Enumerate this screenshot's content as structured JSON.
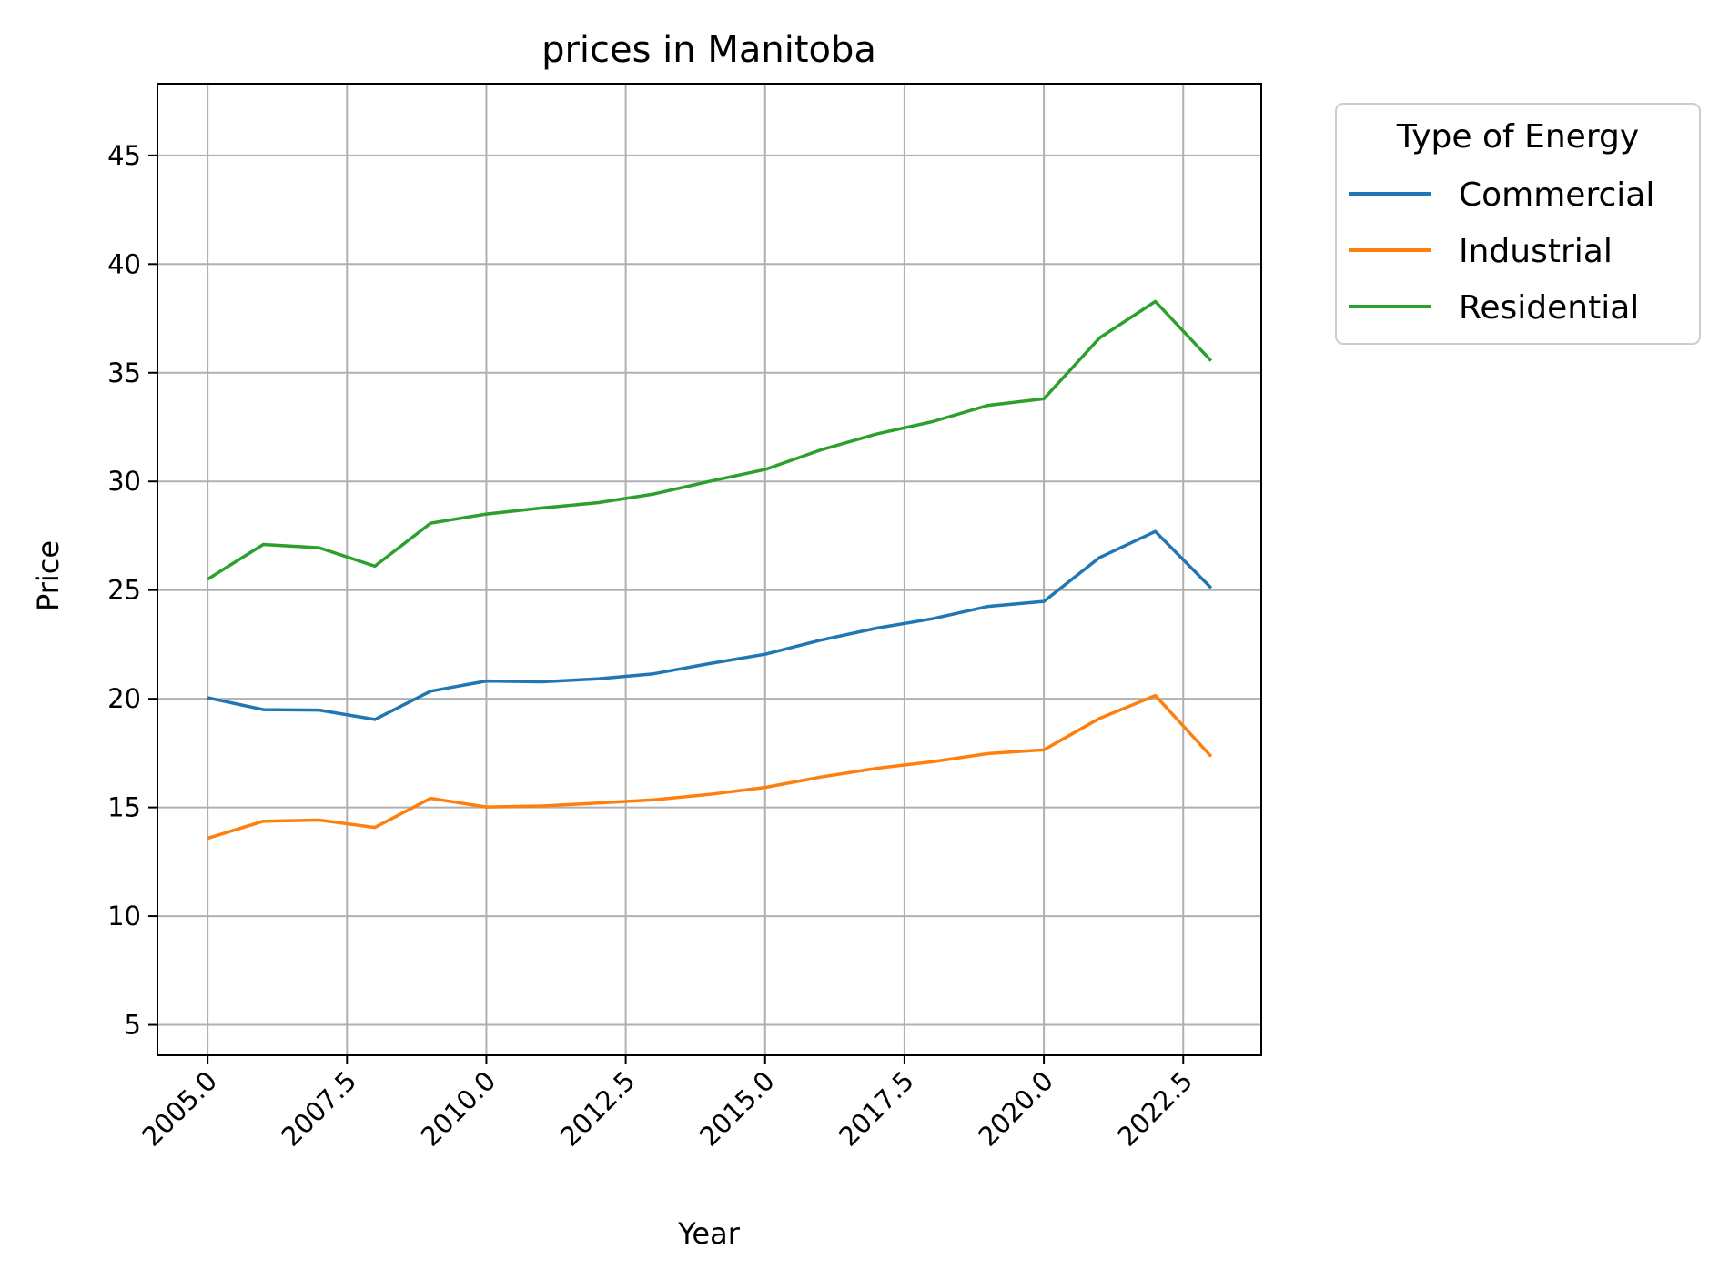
{
  "chart_data": {
    "type": "line",
    "title": "prices in Manitoba",
    "xlabel": "Year",
    "ylabel": "Price",
    "xlim": [
      2004.1,
      2023.9
    ],
    "ylim": [
      3.6,
      48.3
    ],
    "xticks": [
      2005.0,
      2007.5,
      2010.0,
      2012.5,
      2015.0,
      2017.5,
      2020.0,
      2022.5
    ],
    "xtick_labels": [
      "2005.0",
      "2007.5",
      "2010.0",
      "2012.5",
      "2015.0",
      "2017.5",
      "2020.0",
      "2022.5"
    ],
    "yticks": [
      5,
      10,
      15,
      20,
      25,
      30,
      35,
      40,
      45
    ],
    "ytick_labels": [
      "5",
      "10",
      "15",
      "20",
      "25",
      "30",
      "35",
      "40",
      "45"
    ],
    "grid": true,
    "legend": {
      "title": "Type of Energy",
      "placement": "outside upper right"
    },
    "x": [
      2005,
      2006,
      2007,
      2008,
      2009,
      2010,
      2011,
      2012,
      2013,
      2014,
      2015,
      2016,
      2017,
      2018,
      2019,
      2020,
      2021,
      2022,
      2023
    ],
    "series": [
      {
        "name": "Commercial",
        "color": "#1f77b4",
        "values": [
          20.05,
          19.5,
          19.48,
          19.05,
          20.35,
          20.82,
          20.78,
          20.92,
          21.15,
          21.62,
          22.05,
          22.7,
          23.25,
          23.68,
          24.25,
          24.48,
          26.5,
          27.7,
          25.1
        ]
      },
      {
        "name": "Industrial",
        "color": "#ff7f0e",
        "values": [
          13.58,
          14.37,
          14.42,
          14.08,
          15.42,
          15.02,
          15.07,
          15.2,
          15.35,
          15.6,
          15.92,
          16.4,
          16.8,
          17.1,
          17.48,
          17.65,
          19.1,
          20.15,
          17.35
        ]
      },
      {
        "name": "Residential",
        "color": "#2ca02c",
        "values": [
          25.5,
          27.1,
          26.95,
          26.1,
          28.08,
          28.5,
          28.78,
          29.02,
          29.42,
          30.0,
          30.55,
          31.45,
          32.18,
          32.75,
          33.5,
          33.8,
          36.6,
          38.28,
          35.55
        ]
      }
    ]
  }
}
